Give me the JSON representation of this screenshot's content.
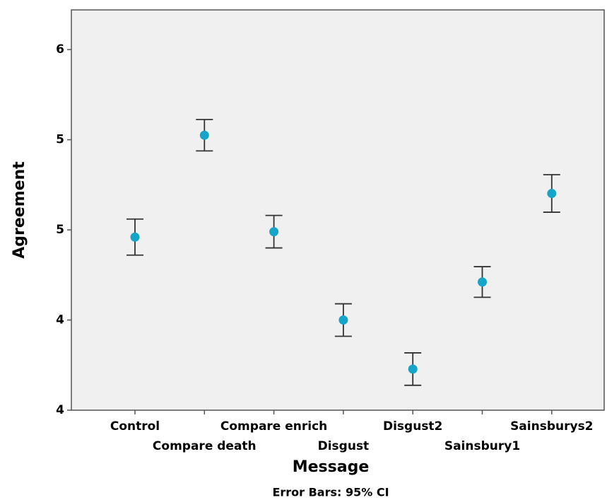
{
  "chart_data": {
    "type": "errorbar",
    "x_label": "Message",
    "y_label": "Agreement",
    "note": "Error Bars: 95% CI",
    "categories": [
      "Control",
      "Compare death",
      "Compare enrich",
      "Disgust",
      "Disgust2",
      "Sainsbury1",
      "Sainsburys2"
    ],
    "values": [
      4.46,
      5.025,
      4.49,
      4.0,
      3.728,
      4.211,
      4.702
    ],
    "errors": [
      0.1,
      0.087,
      0.09,
      0.09,
      0.09,
      0.085,
      0.104
    ],
    "color": "#16a5c8",
    "ylim": [
      3.5,
      5.72
    ],
    "yticks": [
      {
        "value": 3.5,
        "label": "4"
      },
      4,
      {
        "value": 4.5,
        "label": "5"
      },
      5,
      {
        "value": 5.5,
        "label": "6"
      }
    ],
    "grid": false
  }
}
